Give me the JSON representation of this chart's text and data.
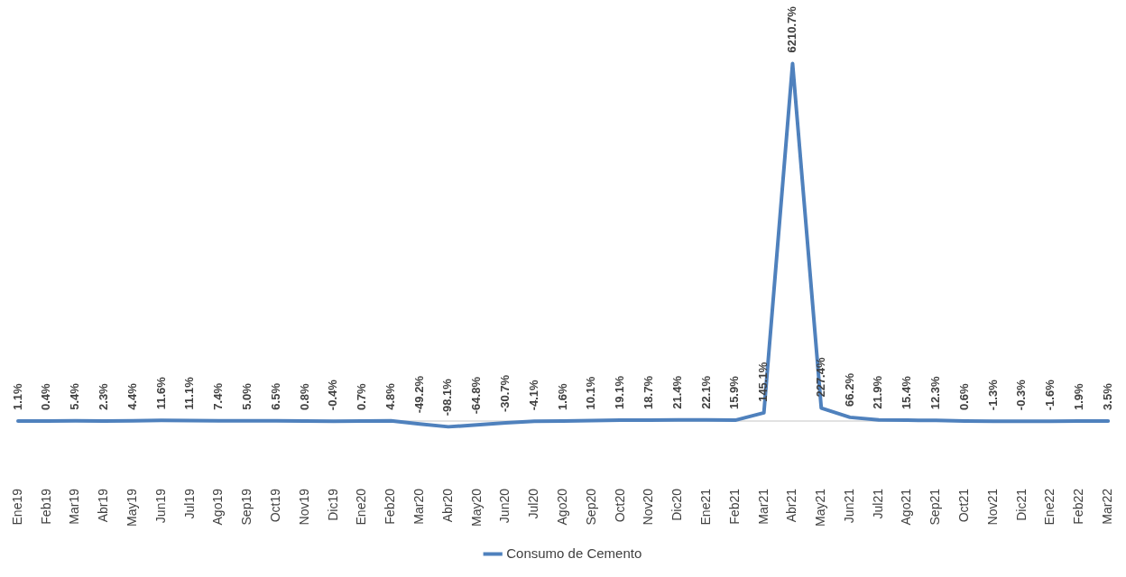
{
  "chart_data": {
    "type": "line",
    "categories": [
      "Ene19",
      "Feb19",
      "Mar19",
      "Abr19",
      "May19",
      "Jun19",
      "Jul19",
      "Ago19",
      "Sep19",
      "Oct19",
      "Nov19",
      "Dic19",
      "Ene20",
      "Feb20",
      "Mar20",
      "Abr20",
      "May20",
      "Jun20",
      "Jul20",
      "Ago20",
      "Sep20",
      "Oct20",
      "Nov20",
      "Dic20",
      "Ene21",
      "Feb21",
      "Mar21",
      "Abr21",
      "May21",
      "Jun21",
      "Jul21",
      "Ago21",
      "Sep21",
      "Oct21",
      "Nov21",
      "Dic21",
      "Ene22",
      "Feb22",
      "Mar22"
    ],
    "series": [
      {
        "name": "Consumo de Cemento",
        "color": "#4f81bd",
        "values": [
          1.1,
          0.4,
          5.4,
          2.3,
          4.4,
          11.6,
          11.1,
          7.4,
          5.0,
          6.5,
          0.8,
          -0.4,
          0.7,
          4.8,
          -49.2,
          -98.1,
          -64.8,
          -30.7,
          -4.1,
          1.6,
          10.1,
          19.1,
          18.7,
          21.4,
          22.1,
          15.9,
          145.1,
          6210.7,
          227.4,
          66.2,
          21.9,
          15.4,
          12.3,
          0.6,
          -1.3,
          -0.3,
          -1.6,
          1.9,
          3.5
        ],
        "value_labels": [
          "1.1%",
          "0.4%",
          "5.4%",
          "2.3%",
          "4.4%",
          "11.6%",
          "11.1%",
          "7.4%",
          "5.0%",
          "6.5%",
          "0.8%",
          "-0.4%",
          "0.7%",
          "4.8%",
          "-49.2%",
          "-98.1%",
          "-64.8%",
          "-30.7%",
          "-4.1%",
          "1.6%",
          "10.1%",
          "19.1%",
          "18.7%",
          "21.4%",
          "22.1%",
          "15.9%",
          "145.1%",
          "6210.7%",
          "227.4%",
          "66.2%",
          "21.9%",
          "15.4%",
          "12.3%",
          "0.6%",
          "-1.3%",
          "-0.3%",
          "-1.6%",
          "1.9%",
          "3.5%"
        ]
      }
    ],
    "ref_lines": [
      {
        "axis": "y",
        "value": 0,
        "color": "#d9d9d9"
      }
    ],
    "legend": "bottom",
    "grid": false,
    "marker": "none",
    "line_style": "solid"
  }
}
